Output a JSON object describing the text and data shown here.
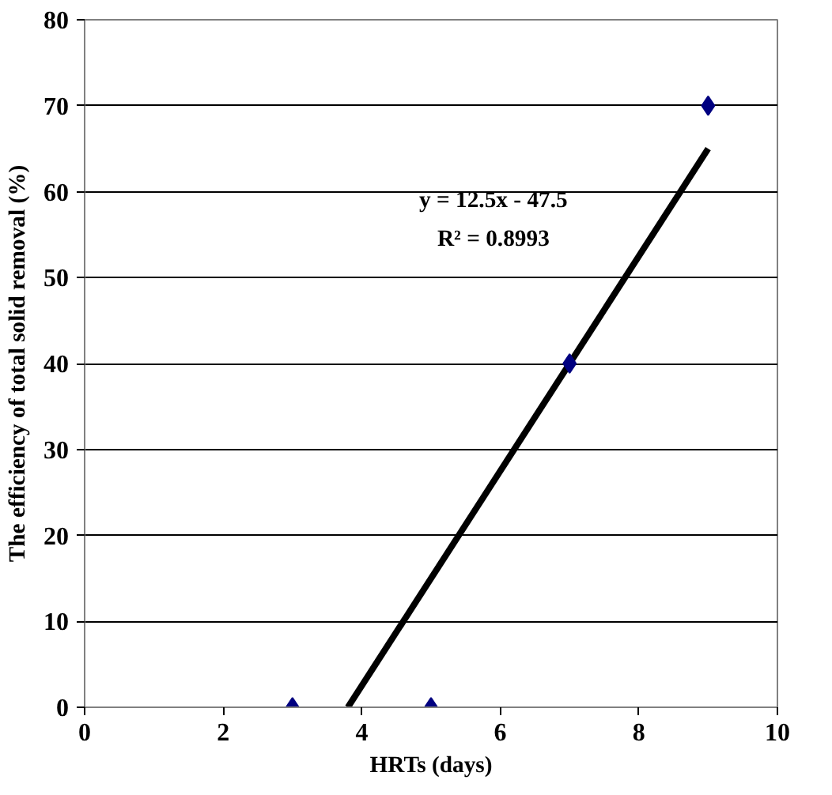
{
  "chart_data": {
    "type": "scatter",
    "xlabel": "HRTs (days)",
    "ylabel": "The efficiency of total solid removal (%)",
    "series": [
      {
        "color": "#000080",
        "x": [
          3,
          5,
          7,
          9
        ],
        "values": [
          0,
          0,
          40,
          70
        ],
        "marker": "diamond"
      },
      {
        "type": "line",
        "color": "#000000",
        "x": [
          3.8,
          9
        ],
        "values": [
          0,
          65
        ],
        "line_style": "solid"
      }
    ],
    "xlim": [
      0,
      10
    ],
    "xticks": [
      0,
      2,
      4,
      6,
      8,
      10
    ],
    "ylim": [
      0,
      80
    ],
    "yticks": [
      0,
      10,
      20,
      30,
      40,
      50,
      60,
      70,
      80
    ],
    "grid": "y",
    "annotations": [
      "y = 12.5x - 47.5",
      "R² = 0.8993"
    ]
  }
}
